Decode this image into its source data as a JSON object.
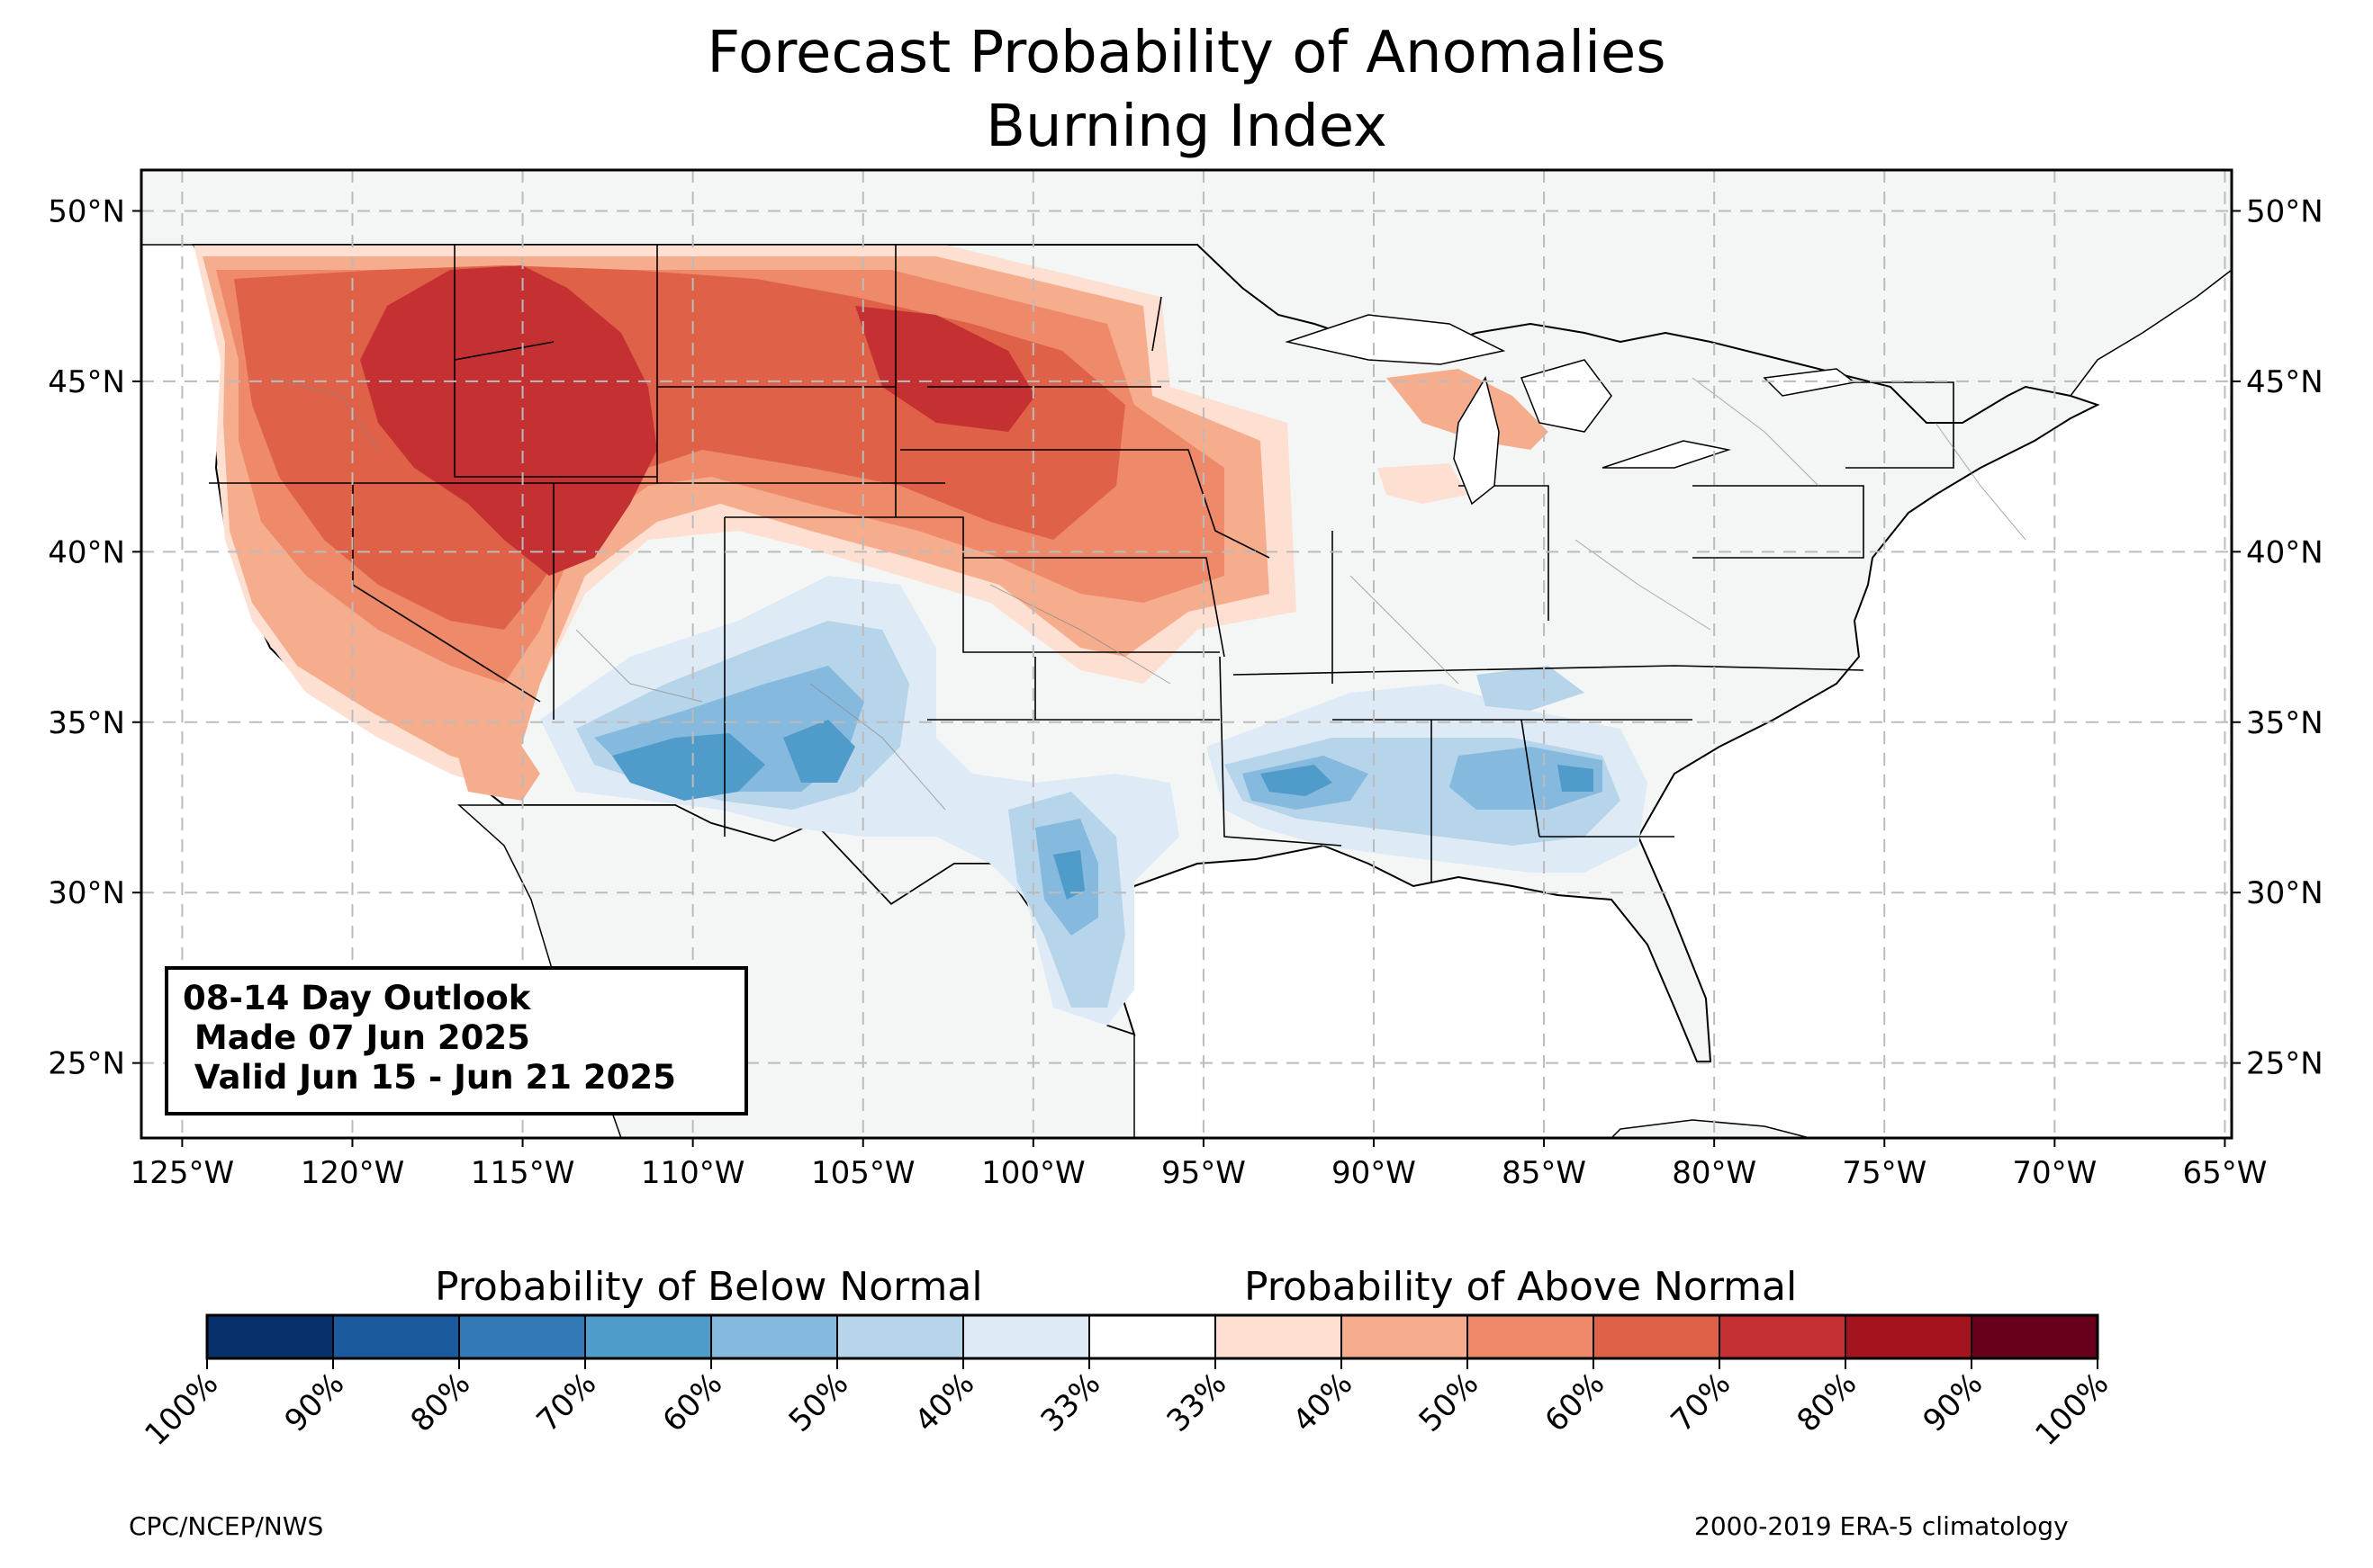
{
  "title": {
    "line1": "Forecast Probability of Anomalies",
    "line2": "Burning Index"
  },
  "map": {
    "lat_labels": [
      "50°N",
      "45°N",
      "40°N",
      "35°N",
      "30°N",
      "25°N"
    ],
    "lat_values": [
      50,
      45,
      40,
      35,
      30,
      25
    ],
    "lon_labels": [
      "125°W",
      "120°W",
      "115°W",
      "110°W",
      "105°W",
      "100°W",
      "95°W",
      "90°W",
      "85°W",
      "80°W",
      "75°W",
      "70°W",
      "65°W"
    ],
    "lon_values": [
      -125,
      -120,
      -115,
      -110,
      -105,
      -100,
      -95,
      -90,
      -85,
      -80,
      -75,
      -70,
      -65
    ],
    "lon_range": [
      -126.2,
      -64.8
    ],
    "lat_range": [
      22.8,
      51.2
    ],
    "land_color": "#f4f6f6",
    "ocean_color": "#ffffff",
    "grid": "dashed"
  },
  "outlook": {
    "line1": "08-14 Day Outlook",
    "line2": " Made 07 Jun 2025",
    "line3": " Valid Jun 15 - Jun 21 2025"
  },
  "colorbar": {
    "below_label": "Probability of Below Normal",
    "above_label": "Probability of Above Normal",
    "tick_labels": [
      "100%",
      "90%",
      "80%",
      "70%",
      "60%",
      "50%",
      "40%",
      "33%",
      "33%",
      "40%",
      "50%",
      "60%",
      "70%",
      "80%",
      "90%",
      "100%"
    ],
    "colors": [
      "#08306b",
      "#1c5a9e",
      "#3279b6",
      "#4f9ccb",
      "#85b9dd",
      "#b7d5ea",
      "#deeaf5",
      "#ffffff",
      "#fde0d2",
      "#f6ad8e",
      "#ee8a6a",
      "#df6148",
      "#c53033",
      "#a4141e",
      "#68001c"
    ]
  },
  "credits": {
    "left": "CPC/NCEP/NWS",
    "right": "2000-2019 ERA-5 climatology"
  }
}
